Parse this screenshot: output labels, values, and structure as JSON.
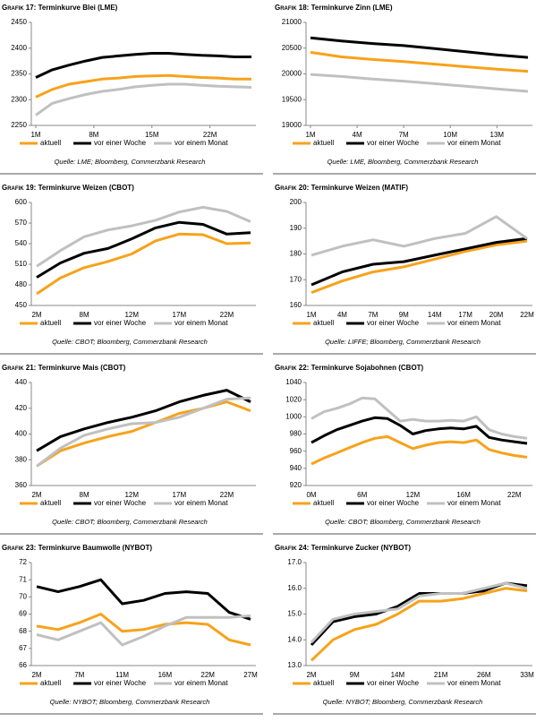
{
  "chart_data": [
    {
      "type": "line",
      "label": "Grafik 17:",
      "title": "Terminkurve Blei (LME)",
      "x": [
        1,
        3,
        5,
        7,
        9,
        11,
        13,
        15,
        17,
        19,
        21,
        23,
        25,
        27
      ],
      "xlim": [
        1,
        27
      ],
      "xticks": [
        {
          "value": 1,
          "label": "1M"
        },
        {
          "value": 8,
          "label": "8M"
        },
        {
          "value": 15,
          "label": "15M"
        },
        {
          "value": 22,
          "label": "22M"
        }
      ],
      "ylim": [
        2250,
        2450
      ],
      "yticks": [
        2250,
        2300,
        2350,
        2400,
        2450
      ],
      "series": [
        {
          "name": "aktuell",
          "color": "#f7a21b",
          "values": [
            2305,
            2320,
            2330,
            2335,
            2340,
            2342,
            2345,
            2346,
            2347,
            2345,
            2343,
            2342,
            2340,
            2340
          ]
        },
        {
          "name": "vor einer Woche",
          "color": "#000000",
          "values": [
            2343,
            2358,
            2367,
            2375,
            2382,
            2385,
            2388,
            2390,
            2390,
            2388,
            2386,
            2385,
            2383,
            2383
          ]
        },
        {
          "name": "vor einem Monat",
          "color": "#c0c0c0",
          "values": [
            2270,
            2293,
            2302,
            2310,
            2316,
            2320,
            2325,
            2328,
            2330,
            2330,
            2328,
            2326,
            2325,
            2324
          ]
        }
      ],
      "source": "Quelle: LME; Bloomberg, Commerzbank Research"
    },
    {
      "type": "line",
      "label": "Grafik 18:",
      "title": "Terminkurve Zinn (LME)",
      "x": [
        1,
        3,
        5,
        7,
        9,
        11,
        13,
        15
      ],
      "xlim": [
        1,
        15
      ],
      "xticks": [
        {
          "value": 1,
          "label": "1M"
        },
        {
          "value": 4,
          "label": "4M"
        },
        {
          "value": 7,
          "label": "7M"
        },
        {
          "value": 10,
          "label": "10M"
        },
        {
          "value": 13,
          "label": "13M"
        }
      ],
      "ylim": [
        19000,
        21000
      ],
      "yticks": [
        19000,
        19500,
        20000,
        20500,
        21000
      ],
      "series": [
        {
          "name": "aktuell",
          "color": "#f7a21b",
          "values": [
            20420,
            20330,
            20280,
            20240,
            20190,
            20140,
            20090,
            20050
          ]
        },
        {
          "name": "vor einer Woche",
          "color": "#000000",
          "values": [
            20700,
            20640,
            20590,
            20550,
            20490,
            20430,
            20370,
            20320
          ]
        },
        {
          "name": "vor einem Monat",
          "color": "#c0c0c0",
          "values": [
            19990,
            19950,
            19900,
            19860,
            19810,
            19760,
            19710,
            19660
          ]
        }
      ],
      "source": "Quelle: LME, Bloomberg, Commerzbank Research"
    },
    {
      "type": "line",
      "label": "Grafik 19:",
      "title": "Terminkurve Weizen (CBOT)",
      "categories": [
        "2M",
        null,
        "8M",
        null,
        "12M",
        null,
        "17M",
        null,
        "22M",
        null
      ],
      "ylim": [
        450,
        600
      ],
      "yticks": [
        450,
        480,
        510,
        540,
        570,
        600
      ],
      "series": [
        {
          "name": "aktuell",
          "color": "#f7a21b",
          "values": [
            467,
            490,
            505,
            514,
            525,
            544,
            554,
            553,
            540,
            541
          ]
        },
        {
          "name": "vor einer Woche",
          "color": "#000000",
          "values": [
            491,
            512,
            526,
            533,
            547,
            563,
            571,
            568,
            554,
            556
          ]
        },
        {
          "name": "vor einem Monat",
          "color": "#c0c0c0",
          "values": [
            507,
            530,
            550,
            560,
            566,
            574,
            586,
            593,
            587,
            572
          ]
        }
      ],
      "source": "Quelle: CBOT; Bloomberg, Commerzbank Research"
    },
    {
      "type": "line",
      "label": "Grafik 20:",
      "title": "Terminkurve Weizen (MATIF)",
      "categories": [
        "1M",
        "4M",
        "7M",
        "9M",
        "14M",
        "17M",
        "20M",
        "22M"
      ],
      "ylim": [
        160,
        200
      ],
      "yticks": [
        160,
        170,
        180,
        190,
        200
      ],
      "series": [
        {
          "name": "aktuell",
          "color": "#f7a21b",
          "values": [
            165,
            169.5,
            173,
            175,
            178,
            181,
            183.5,
            185
          ]
        },
        {
          "name": "vor einer Woche",
          "color": "#000000",
          "values": [
            168,
            173,
            176,
            177,
            179.5,
            182,
            184.5,
            186
          ]
        },
        {
          "name": "vor einem Monat",
          "color": "#c0c0c0",
          "values": [
            179.5,
            183,
            185.5,
            183,
            186,
            188,
            194.5,
            186
          ]
        }
      ],
      "source": "Quelle: LIFFE; Bloomberg, Commerzbank Research"
    },
    {
      "type": "line",
      "label": "Grafik 21:",
      "title": "Terminkurve Mais (CBOT)",
      "categories": [
        "2M",
        null,
        "8M",
        null,
        "12M",
        null,
        "17M",
        null,
        "22M",
        null
      ],
      "ylim": [
        360,
        440
      ],
      "yticks": [
        360,
        380,
        400,
        420,
        440
      ],
      "series": [
        {
          "name": "aktuell",
          "color": "#f7a21b",
          "values": [
            375,
            387,
            393,
            398,
            402,
            409,
            416,
            420,
            425,
            418
          ]
        },
        {
          "name": "vor einer Woche",
          "color": "#000000",
          "values": [
            387,
            398,
            404,
            409,
            413,
            418,
            425,
            430,
            434,
            425
          ]
        },
        {
          "name": "vor einem Monat",
          "color": "#c0c0c0",
          "values": [
            375,
            389,
            399,
            404,
            408,
            409,
            413,
            420,
            427,
            428
          ]
        }
      ],
      "source": "Quelle: CBOT; Bloomberg, Commerzbank Research"
    },
    {
      "type": "line",
      "label": "Grafik 22:",
      "title": "Terminkurve Sojabohnen (CBOT)",
      "categories": [
        "0M",
        null,
        null,
        null,
        "6M",
        null,
        null,
        null,
        "12M",
        null,
        null,
        null,
        "16M",
        null,
        null,
        null,
        "22M",
        null
      ],
      "ylim": [
        920,
        1040
      ],
      "yticks": [
        920,
        940,
        960,
        980,
        1000,
        1020,
        1040
      ],
      "series": [
        {
          "name": "aktuell",
          "color": "#f7a21b",
          "values": [
            945,
            952,
            958,
            964,
            970,
            975,
            977,
            970,
            963,
            967,
            970,
            971,
            970,
            973,
            962,
            958,
            955,
            953
          ]
        },
        {
          "name": "vor einer Woche",
          "color": "#000000",
          "values": [
            970,
            978,
            985,
            990,
            995,
            999,
            998,
            990,
            980,
            984,
            986,
            987,
            986,
            989,
            976,
            973,
            971,
            969
          ]
        },
        {
          "name": "vor einem Monat",
          "color": "#c0c0c0",
          "values": [
            998,
            1006,
            1010,
            1015,
            1022,
            1021,
            1008,
            995,
            997,
            995,
            995,
            996,
            995,
            1000,
            985,
            980,
            977,
            975
          ]
        }
      ],
      "source": "Quelle: CBOT; Bloomberg, Commerzbank Research"
    },
    {
      "type": "line",
      "label": "Grafik 23:",
      "title": "Terminkurve Baumwolle (NYBOT)",
      "categories": [
        "2M",
        null,
        "7M",
        null,
        "11M",
        null,
        "16M",
        null,
        "22M",
        null,
        "27M"
      ],
      "ylim": [
        66,
        72
      ],
      "yticks": [
        66,
        67,
        68,
        69,
        70,
        71,
        72
      ],
      "series": [
        {
          "name": "aktuell",
          "color": "#f7a21b",
          "values": [
            68.3,
            68.1,
            68.5,
            69.0,
            68.0,
            68.1,
            68.4,
            68.5,
            68.4,
            67.5,
            67.2
          ]
        },
        {
          "name": "vor einer Woche",
          "color": "#000000",
          "values": [
            70.6,
            70.3,
            70.6,
            71.0,
            69.6,
            69.8,
            70.2,
            70.3,
            70.2,
            69.1,
            68.7
          ]
        },
        {
          "name": "vor einem Monat",
          "color": "#c0c0c0",
          "values": [
            67.8,
            67.5,
            68.0,
            68.5,
            67.2,
            67.7,
            68.3,
            68.8,
            68.8,
            68.8,
            68.9
          ]
        }
      ],
      "source": "Quelle: NYBOT; Bloomberg, Commerzbank Research"
    },
    {
      "type": "line",
      "label": "Grafik 24:",
      "title": "Terminkurve Zucker (NYBOT)",
      "categories": [
        "2M",
        null,
        "9M",
        null,
        "14M",
        null,
        "21M",
        null,
        "26M",
        null,
        "33M"
      ],
      "ylim": [
        13,
        17
      ],
      "yticks": [
        {
          "value": 13,
          "label": "13.0"
        },
        {
          "value": 14,
          "label": "14.0"
        },
        {
          "value": 15,
          "label": "15.0"
        },
        {
          "value": 16,
          "label": "16.0"
        },
        {
          "value": 17,
          "label": "17.0"
        }
      ],
      "series": [
        {
          "name": "aktuell",
          "color": "#f7a21b",
          "values": [
            13.2,
            14.0,
            14.4,
            14.6,
            15.0,
            15.5,
            15.5,
            15.6,
            15.8,
            16.0,
            15.9
          ]
        },
        {
          "name": "vor einer Woche",
          "color": "#000000",
          "values": [
            13.8,
            14.7,
            14.9,
            15.0,
            15.3,
            15.8,
            15.8,
            15.8,
            15.9,
            16.2,
            16.1
          ]
        },
        {
          "name": "vor einem Monat",
          "color": "#c0c0c0",
          "values": [
            13.9,
            14.8,
            15.0,
            15.1,
            15.2,
            15.7,
            15.8,
            15.8,
            16.0,
            16.2,
            16.0
          ]
        }
      ],
      "source": "Quelle: NYBOT; Bloomberg, Commerzbank Research"
    }
  ]
}
